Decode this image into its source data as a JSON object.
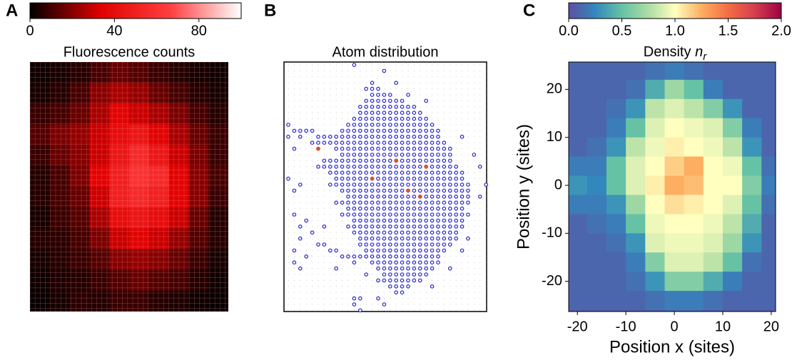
{
  "chart_data": [
    {
      "type": "heatmap",
      "panel": "A",
      "title": "Fluorescence counts",
      "colormap": [
        "#000000",
        "#e00000",
        "#ff4040",
        "#ffffff"
      ],
      "clim": [
        0,
        100
      ],
      "cticks": [
        0,
        40,
        80
      ],
      "z": [
        [
          2,
          3,
          5,
          10,
          15,
          12,
          8,
          5,
          3,
          2
        ],
        [
          3,
          5,
          10,
          20,
          25,
          22,
          15,
          10,
          5,
          3
        ],
        [
          8,
          10,
          15,
          25,
          35,
          30,
          25,
          18,
          10,
          5
        ],
        [
          12,
          18,
          22,
          30,
          40,
          45,
          35,
          25,
          15,
          8
        ],
        [
          8,
          15,
          20,
          30,
          45,
          55,
          45,
          30,
          18,
          8
        ],
        [
          5,
          10,
          18,
          35,
          50,
          60,
          55,
          35,
          20,
          10
        ],
        [
          5,
          10,
          15,
          30,
          50,
          55,
          50,
          35,
          20,
          8
        ],
        [
          3,
          8,
          12,
          25,
          40,
          45,
          40,
          30,
          15,
          5
        ],
        [
          5,
          6,
          10,
          18,
          30,
          35,
          30,
          22,
          12,
          5
        ],
        [
          3,
          5,
          8,
          12,
          20,
          22,
          20,
          15,
          8,
          3
        ],
        [
          2,
          4,
          5,
          8,
          12,
          15,
          12,
          10,
          5,
          2
        ],
        [
          1,
          3,
          6,
          5,
          8,
          8,
          5,
          4,
          2,
          1
        ]
      ]
    },
    {
      "type": "lattice",
      "panel": "B",
      "title": "Atom distribution",
      "color": "#2323c8",
      "hot_color": "#d9552b",
      "rows": [
        {
          "y": 0,
          "runs": [
            [
              11,
              11
            ]
          ]
        },
        {
          "y": 1,
          "runs": [
            [
              16,
              16
            ]
          ]
        },
        {
          "y": 3,
          "runs": [
            [
              14,
              14
            ],
            [
              18,
              18
            ]
          ]
        },
        {
          "y": 4,
          "runs": [
            [
              13,
              15
            ]
          ]
        },
        {
          "y": 5,
          "runs": [
            [
              14,
              17
            ],
            [
              20,
              20
            ]
          ]
        },
        {
          "y": 6,
          "runs": [
            [
              13,
              19
            ],
            [
              23,
              23
            ]
          ]
        },
        {
          "y": 7,
          "runs": [
            [
              12,
              21
            ]
          ]
        },
        {
          "y": 8,
          "runs": [
            [
              12,
              22
            ]
          ]
        },
        {
          "y": 9,
          "runs": [
            [
              11,
              23
            ]
          ]
        },
        {
          "y": 10,
          "runs": [
            [
              0,
              0
            ],
            [
              10,
              24
            ]
          ]
        },
        {
          "y": 11,
          "runs": [
            [
              1,
              4
            ],
            [
              9,
              25
            ]
          ]
        },
        {
          "y": 12,
          "runs": [
            [
              0,
              0
            ],
            [
              2,
              2
            ],
            [
              5,
              25
            ],
            [
              29,
              29
            ]
          ]
        },
        {
          "y": 13,
          "runs": [
            [
              4,
              26
            ]
          ]
        },
        {
          "y": 14,
          "runs": [
            [
              1,
              1
            ],
            [
              5,
              5
            ],
            [
              8,
              27
            ]
          ]
        },
        {
          "y": 15,
          "runs": [
            [
              9,
              27
            ],
            [
              31,
              31
            ]
          ]
        },
        {
          "y": 16,
          "runs": [
            [
              6,
              27
            ]
          ]
        },
        {
          "y": 17,
          "runs": [
            [
              5,
              28
            ],
            [
              32,
              32
            ]
          ]
        },
        {
          "y": 18,
          "runs": [
            [
              7,
              29
            ]
          ]
        },
        {
          "y": 19,
          "runs": [
            [
              0,
              0
            ],
            [
              8,
              29
            ]
          ]
        },
        {
          "y": 20,
          "runs": [
            [
              2,
              2
            ],
            [
              7,
              30
            ],
            [
              33,
              33
            ]
          ]
        },
        {
          "y": 21,
          "runs": [
            [
              1,
              1
            ],
            [
              9,
              30
            ]
          ]
        },
        {
          "y": 22,
          "runs": [
            [
              10,
              30
            ],
            [
              32,
              32
            ]
          ]
        },
        {
          "y": 23,
          "runs": [
            [
              8,
              30
            ]
          ]
        },
        {
          "y": 24,
          "runs": [
            [
              10,
              29
            ]
          ]
        },
        {
          "y": 25,
          "runs": [
            [
              1,
              1
            ],
            [
              9,
              30
            ]
          ]
        },
        {
          "y": 26,
          "runs": [
            [
              3,
              3
            ],
            [
              11,
              29
            ]
          ]
        },
        {
          "y": 27,
          "runs": [
            [
              2,
              2
            ],
            [
              6,
              6
            ],
            [
              10,
              29
            ]
          ]
        },
        {
          "y": 28,
          "runs": [
            [
              4,
              4
            ],
            [
              11,
              28
            ]
          ]
        },
        {
          "y": 29,
          "runs": [
            [
              2,
              2
            ],
            [
              12,
              28
            ],
            [
              30,
              30
            ]
          ]
        },
        {
          "y": 30,
          "runs": [
            [
              5,
              6
            ],
            [
              12,
              27
            ]
          ]
        },
        {
          "y": 31,
          "runs": [
            [
              1,
              1
            ],
            [
              7,
              8
            ],
            [
              13,
              26
            ],
            [
              29,
              29
            ]
          ]
        },
        {
          "y": 32,
          "runs": [
            [
              3,
              3
            ],
            [
              9,
              25
            ]
          ]
        },
        {
          "y": 33,
          "runs": [
            [
              1,
              1
            ],
            [
              11,
              11
            ],
            [
              14,
              25
            ]
          ]
        },
        {
          "y": 34,
          "runs": [
            [
              2,
              2
            ],
            [
              8,
              8
            ],
            [
              15,
              24
            ],
            [
              27,
              27
            ]
          ]
        },
        {
          "y": 35,
          "runs": [
            [
              13,
              13
            ],
            [
              16,
              23
            ]
          ]
        },
        {
          "y": 36,
          "runs": [
            [
              15,
              22
            ]
          ]
        },
        {
          "y": 37,
          "runs": [
            [
              17,
              20
            ],
            [
              24,
              24
            ]
          ]
        },
        {
          "y": 38,
          "runs": [
            [
              18,
              19
            ]
          ]
        },
        {
          "y": 39,
          "runs": [
            [
              11,
              12
            ],
            [
              15,
              15
            ]
          ]
        },
        {
          "y": 40,
          "runs": [
            [
              11,
              11
            ],
            [
              16,
              16
            ]
          ]
        },
        {
          "y": 41,
          "runs": [
            [
              12,
              12
            ]
          ]
        }
      ],
      "hot": [
        [
          5,
          14
        ],
        [
          18,
          16
        ],
        [
          23,
          17
        ],
        [
          14,
          19
        ],
        [
          20,
          21
        ],
        [
          22,
          22
        ]
      ]
    },
    {
      "type": "heatmap",
      "panel": "C",
      "title": "Density",
      "title_symbol": "n",
      "title_subscript": "r",
      "xlabel": "Position x (sites)",
      "ylabel": "Position y (sites)",
      "xlim": [
        -21.8,
        20.9
      ],
      "ylim": [
        -26.3,
        25.7
      ],
      "xticks": [
        -20,
        -10,
        0,
        10,
        20
      ],
      "yticks": [
        -20,
        -10,
        0,
        10,
        20
      ],
      "colormap": [
        "#5e4fa2",
        "#3288bd",
        "#66c2a5",
        "#abdda4",
        "#ffffbf",
        "#fdae61",
        "#f46d43",
        "#d53e4f",
        "#9e0142"
      ],
      "clim": [
        0,
        2
      ],
      "cticks": [
        {
          "value": 0,
          "label": "0.0"
        },
        {
          "value": 0.5,
          "label": "0.5"
        },
        {
          "value": 1,
          "label": "1.0"
        },
        {
          "value": 1.5,
          "label": "1.5"
        },
        {
          "value": 2,
          "label": "2.0"
        }
      ],
      "x": [
        -20,
        -16,
        -12,
        -8,
        -4,
        0,
        4,
        8,
        12,
        16,
        20
      ],
      "y": [
        24,
        20,
        16,
        12,
        8,
        4,
        0,
        -4,
        -8,
        -12,
        -16,
        -20,
        -24
      ],
      "z": [
        [
          0.1,
          0.1,
          0.1,
          0.1,
          0.15,
          0.2,
          0.15,
          0.1,
          0.1,
          0.1,
          0.1
        ],
        [
          0.1,
          0.1,
          0.1,
          0.15,
          0.4,
          0.7,
          0.5,
          0.2,
          0.1,
          0.1,
          0.1
        ],
        [
          0.1,
          0.1,
          0.15,
          0.3,
          0.8,
          0.9,
          0.8,
          0.6,
          0.3,
          0.1,
          0.1
        ],
        [
          0.1,
          0.1,
          0.2,
          0.5,
          0.9,
          1.0,
          0.95,
          0.9,
          0.6,
          0.2,
          0.1
        ],
        [
          0.1,
          0.15,
          0.3,
          0.8,
          0.95,
          1.05,
          1.0,
          0.95,
          0.8,
          0.3,
          0.1
        ],
        [
          0.2,
          0.2,
          0.5,
          0.9,
          1.0,
          1.15,
          1.25,
          1.0,
          0.95,
          0.5,
          0.15
        ],
        [
          0.3,
          0.25,
          0.5,
          0.9,
          1.05,
          1.25,
          1.2,
          1.0,
          1.0,
          0.6,
          0.2
        ],
        [
          0.2,
          0.2,
          0.3,
          0.7,
          1.0,
          1.1,
          1.05,
          1.0,
          0.9,
          0.5,
          0.15
        ],
        [
          0.1,
          0.15,
          0.2,
          0.5,
          0.95,
          1.0,
          1.0,
          0.95,
          0.8,
          0.4,
          0.1
        ],
        [
          0.1,
          0.1,
          0.15,
          0.3,
          0.9,
          0.95,
          0.95,
          0.9,
          0.7,
          0.3,
          0.1
        ],
        [
          0.1,
          0.1,
          0.1,
          0.2,
          0.6,
          0.9,
          0.9,
          0.8,
          0.5,
          0.15,
          0.1
        ],
        [
          0.1,
          0.1,
          0.1,
          0.15,
          0.3,
          0.6,
          0.6,
          0.4,
          0.2,
          0.1,
          0.1
        ],
        [
          0.1,
          0.1,
          0.1,
          0.1,
          0.15,
          0.2,
          0.2,
          0.15,
          0.1,
          0.1,
          0.1
        ]
      ]
    }
  ]
}
